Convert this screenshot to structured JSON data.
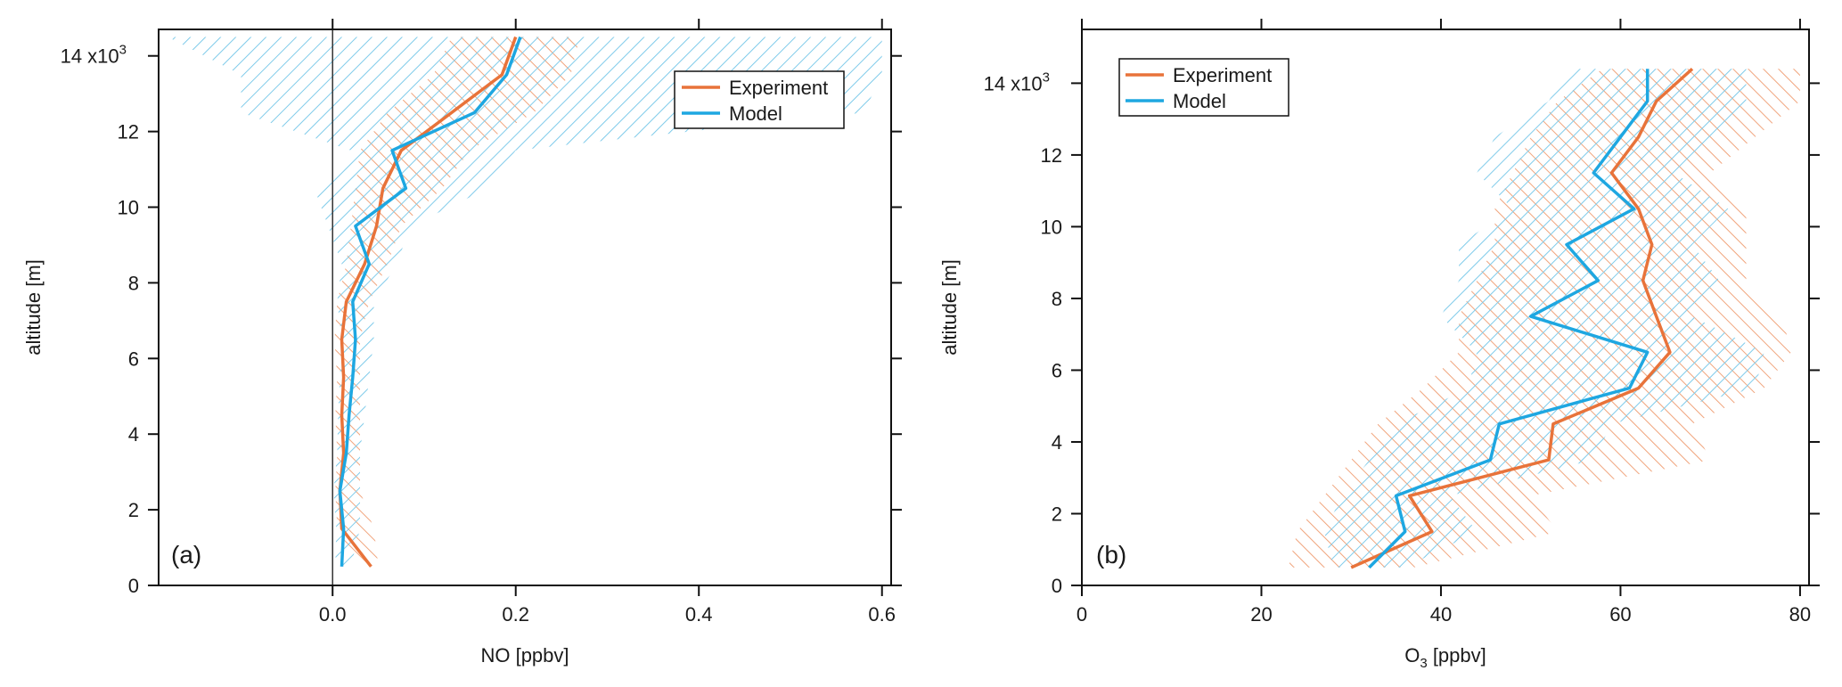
{
  "chart_data": [
    {
      "type": "line",
      "panel_label": "(a)",
      "xlabel": "NO [ppbv]",
      "ylabel": "altitude [m]",
      "xlim": [
        -0.19,
        0.61
      ],
      "ylim": [
        0,
        14700
      ],
      "x_ticks": [
        0.0,
        0.2,
        0.4,
        0.6
      ],
      "x_tick_labels": [
        "0.0",
        "0.2",
        "0.4",
        "0.6"
      ],
      "y_ticks": [
        0,
        2000,
        4000,
        6000,
        8000,
        10000,
        12000,
        14000
      ],
      "y_tick_labels": [
        "0",
        "2",
        "4",
        "6",
        "8",
        "10",
        "12",
        "14 x10"
      ],
      "y_top_exponent": "3",
      "zero_line": true,
      "legend": {
        "position": "top-right",
        "entries": [
          "Experiment",
          "Model"
        ]
      },
      "series": [
        {
          "name": "Experiment",
          "color": "#e8733a",
          "y": [
            500,
            1500,
            2500,
            3500,
            4500,
            5500,
            6500,
            7500,
            8500,
            9500,
            10500,
            11500,
            12500,
            13500,
            14500
          ],
          "x": [
            0.042,
            0.01,
            0.008,
            0.012,
            0.01,
            0.012,
            0.01,
            0.015,
            0.035,
            0.048,
            0.055,
            0.075,
            0.13,
            0.185,
            0.2
          ],
          "band_low": [
            0.03,
            0.005,
            0.003,
            0.005,
            0.003,
            0.005,
            0.002,
            0.005,
            0.015,
            0.02,
            0.025,
            0.03,
            0.06,
            0.11,
            0.13
          ],
          "band_high": [
            0.05,
            0.045,
            0.03,
            0.03,
            0.03,
            0.03,
            0.03,
            0.04,
            0.06,
            0.075,
            0.12,
            0.15,
            0.22,
            0.26,
            0.27
          ]
        },
        {
          "name": "Model",
          "color": "#1ea7e1",
          "y": [
            500,
            1500,
            2500,
            3500,
            4500,
            5500,
            6500,
            7500,
            8500,
            9500,
            10500,
            11500,
            12500,
            13500,
            14500
          ],
          "x": [
            0.01,
            0.012,
            0.008,
            0.015,
            0.018,
            0.022,
            0.025,
            0.022,
            0.04,
            0.025,
            0.08,
            0.065,
            0.155,
            0.19,
            0.205
          ],
          "band_low": [
            0.003,
            0.004,
            0.001,
            0.005,
            0.006,
            0.008,
            0.01,
            0.005,
            0.01,
            -0.005,
            -0.02,
            0.02,
            -0.1,
            -0.1,
            -0.18
          ],
          "band_high": [
            0.02,
            0.03,
            0.03,
            0.03,
            0.035,
            0.04,
            0.045,
            0.045,
            0.07,
            0.085,
            0.17,
            0.2,
            0.58,
            0.6,
            0.6
          ]
        }
      ]
    },
    {
      "type": "line",
      "panel_label": "(b)",
      "xlabel_main": "O",
      "xlabel_sub": "3",
      "xlabel_unit": " [ppbv]",
      "ylabel": "altitude [m]",
      "xlim": [
        0,
        81
      ],
      "ylim": [
        0,
        15500
      ],
      "x_ticks": [
        0,
        20,
        40,
        60,
        80
      ],
      "x_tick_labels": [
        "0",
        "20",
        "40",
        "60",
        "80"
      ],
      "y_ticks": [
        0,
        2000,
        4000,
        6000,
        8000,
        10000,
        12000,
        14000
      ],
      "y_tick_labels": [
        "0",
        "2",
        "4",
        "6",
        "8",
        "10",
        "12",
        "14 x10"
      ],
      "y_top_exponent": "3",
      "legend": {
        "position": "top-left",
        "entries": [
          "Experiment",
          "Model"
        ]
      },
      "series": [
        {
          "name": "Experiment",
          "color": "#e8733a",
          "y": [
            500,
            1500,
            2500,
            3500,
            4500,
            5500,
            6500,
            7500,
            8500,
            9500,
            10500,
            11500,
            12500,
            13500,
            14400
          ],
          "x": [
            30,
            39,
            36.5,
            52,
            52.5,
            62,
            65.5,
            64,
            62.5,
            63.5,
            62,
            59,
            62,
            64,
            68
          ],
          "band_low": [
            23,
            24,
            27,
            30,
            33,
            38,
            42,
            42,
            44,
            46,
            46,
            48,
            50,
            53,
            58
          ],
          "band_high": [
            37,
            53,
            50,
            70,
            68,
            76,
            79,
            78,
            74,
            74,
            74,
            70,
            75,
            80,
            80
          ]
        },
        {
          "name": "Model",
          "color": "#1ea7e1",
          "y": [
            500,
            1500,
            2500,
            3500,
            4500,
            5500,
            6500,
            7500,
            8500,
            9500,
            10500,
            11500,
            12500,
            13500,
            14400
          ],
          "x": [
            32,
            36,
            35,
            45.5,
            46.5,
            61,
            63,
            50,
            57.5,
            54,
            61.5,
            57,
            60,
            63,
            63
          ],
          "band_low": [
            28,
            27,
            29,
            32,
            35,
            43,
            44,
            40,
            42,
            42,
            48,
            44,
            46,
            52,
            54
          ],
          "band_high": [
            36,
            44,
            41,
            57,
            59,
            75,
            76,
            68,
            71,
            68,
            72,
            66,
            70,
            74,
            74
          ]
        }
      ]
    }
  ]
}
